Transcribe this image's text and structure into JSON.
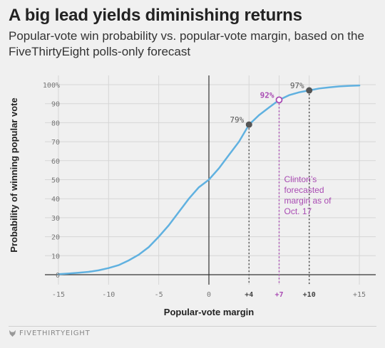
{
  "header": {
    "title": "A big lead yields diminishing returns",
    "subtitle": "Popular-vote win probability vs. popular-vote margin, based on the FiveThirtyEight polls-only forecast"
  },
  "footer": {
    "brand": "FIVETHIRTYEIGHT",
    "brand_icon": "fox-icon"
  },
  "colors": {
    "background": "#f0f0f0",
    "curve": "#60b1e0",
    "highlight": "#a94bb3",
    "marker": "#555555",
    "grid": "#d6d6d6",
    "axis": "#333333"
  },
  "chart_data": {
    "type": "line",
    "xlabel": "Popular-vote margin",
    "ylabel": "Probability of winning popular vote",
    "xlim": [
      -16,
      16
    ],
    "ylim": [
      0,
      100
    ],
    "x_ticks": [
      -15,
      -10,
      -5,
      0,
      4,
      7,
      10,
      15
    ],
    "x_tick_labels": [
      "-15",
      "-10",
      "-5",
      "0",
      "+4",
      "+7",
      "+10",
      "+15"
    ],
    "y_ticks": [
      0,
      10,
      20,
      30,
      40,
      50,
      60,
      70,
      80,
      90,
      100
    ],
    "y_tick_labels": [
      "0",
      "10",
      "20",
      "30",
      "40",
      "50",
      "60",
      "70",
      "80",
      "90",
      "100%"
    ],
    "grid": true,
    "series": [
      {
        "x": [
          -15,
          -14,
          -13,
          -12,
          -11,
          -10,
          -9,
          -8,
          -7,
          -6,
          -5,
          -4,
          -3,
          -2,
          -1,
          0,
          1,
          2,
          3,
          4,
          5,
          6,
          7,
          8,
          9,
          10,
          11,
          12,
          13,
          14,
          15
        ],
        "values": [
          0.3,
          0.6,
          1,
          1.5,
          2.3,
          3.5,
          5,
          7.5,
          10.5,
          14.5,
          20,
          26,
          33,
          40,
          46,
          50,
          56,
          63,
          70,
          79,
          84,
          88,
          92,
          94.5,
          96,
          97,
          98,
          98.6,
          99.1,
          99.4,
          99.6
        ]
      }
    ],
    "points": [
      {
        "x": 4,
        "y": 79,
        "label": "79%",
        "highlight": false
      },
      {
        "x": 7,
        "y": 92,
        "label": "92%",
        "highlight": true
      },
      {
        "x": 10,
        "y": 97,
        "label": "97%",
        "highlight": false
      }
    ],
    "annotation": {
      "x": 7,
      "lines": [
        "Clinton’s",
        "forecasted",
        "margin as of",
        "Oct. 17"
      ]
    }
  }
}
